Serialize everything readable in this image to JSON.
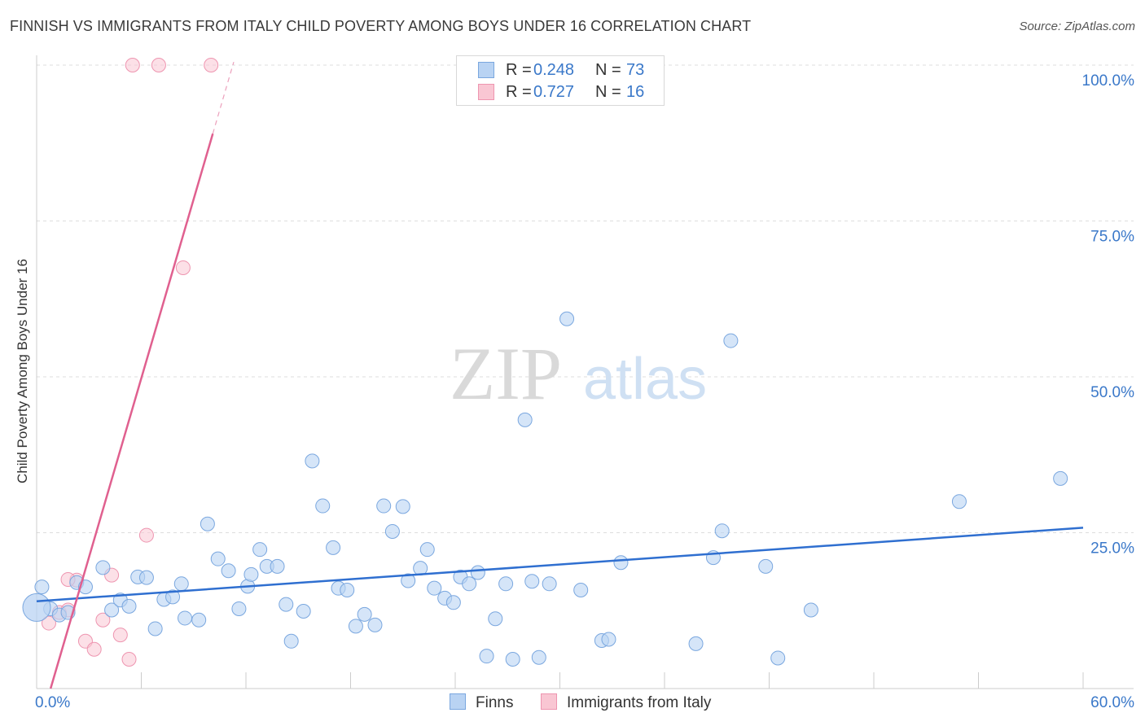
{
  "title": "FINNISH VS IMMIGRANTS FROM ITALY CHILD POVERTY AMONG BOYS UNDER 16 CORRELATION CHART",
  "source": "Source: ZipAtlas.com",
  "watermark": {
    "part1": "ZIP",
    "part2": "atlas"
  },
  "legend": {
    "r_label": "R =",
    "n_label": "N =",
    "rows": [
      {
        "r": "0.248",
        "n": "73"
      },
      {
        "r": "0.727",
        "n": "16"
      }
    ]
  },
  "colors": {
    "finns_fill": "#b9d3f3",
    "finns_stroke": "#7aa7df",
    "finns_line": "#2f6fd0",
    "italy_fill": "#f9c6d3",
    "italy_stroke": "#ee95b0",
    "italy_line": "#e0608f",
    "tick_label": "#3a78c9",
    "grid": "#dddddd"
  },
  "chart_data": {
    "type": "scatter",
    "xlabel": "",
    "ylabel": "Child Poverty Among Boys Under 16",
    "xlim": [
      0,
      60
    ],
    "ylim": [
      0,
      100
    ],
    "x_tick_labels": [
      {
        "value": 0,
        "label": "0.0%"
      },
      {
        "value": 60,
        "label": "60.0%"
      }
    ],
    "y_tick_labels": [
      {
        "value": 100,
        "label": "100.0%"
      },
      {
        "value": 75,
        "label": "75.0%"
      },
      {
        "value": 50,
        "label": "50.0%"
      },
      {
        "value": 25,
        "label": "25.0%"
      }
    ],
    "series": [
      {
        "name": "Finns",
        "r": 0.248,
        "n": 73,
        "trend": {
          "x0": 0,
          "y0": 14.0,
          "x1": 60,
          "y1": 25.8
        },
        "points": [
          [
            0.3,
            16.3
          ],
          [
            0.8,
            12.8
          ],
          [
            1.3,
            11.8
          ],
          [
            1.8,
            12.2
          ],
          [
            2.3,
            17.0
          ],
          [
            2.8,
            16.3
          ],
          [
            3.8,
            19.4
          ],
          [
            4.3,
            12.6
          ],
          [
            4.8,
            14.2
          ],
          [
            5.3,
            13.2
          ],
          [
            5.8,
            17.9
          ],
          [
            6.3,
            17.8
          ],
          [
            6.8,
            9.6
          ],
          [
            7.3,
            14.3
          ],
          [
            7.8,
            14.7
          ],
          [
            8.3,
            16.8
          ],
          [
            8.5,
            11.3
          ],
          [
            9.3,
            11.0
          ],
          [
            9.8,
            26.4
          ],
          [
            10.4,
            20.8
          ],
          [
            11.0,
            18.9
          ],
          [
            11.6,
            12.8
          ],
          [
            12.1,
            16.4
          ],
          [
            12.3,
            18.3
          ],
          [
            12.8,
            22.3
          ],
          [
            13.2,
            19.6
          ],
          [
            13.8,
            19.6
          ],
          [
            14.3,
            13.5
          ],
          [
            14.6,
            7.6
          ],
          [
            15.3,
            12.4
          ],
          [
            15.8,
            36.5
          ],
          [
            16.4,
            29.3
          ],
          [
            17.0,
            22.6
          ],
          [
            17.3,
            16.1
          ],
          [
            17.8,
            15.8
          ],
          [
            18.3,
            10.0
          ],
          [
            18.8,
            11.9
          ],
          [
            19.4,
            10.2
          ],
          [
            19.9,
            29.3
          ],
          [
            20.4,
            25.2
          ],
          [
            21.0,
            29.2
          ],
          [
            21.3,
            17.3
          ],
          [
            22.0,
            19.3
          ],
          [
            22.4,
            22.3
          ],
          [
            22.8,
            16.1
          ],
          [
            23.4,
            14.5
          ],
          [
            23.9,
            13.8
          ],
          [
            24.3,
            17.9
          ],
          [
            24.8,
            16.8
          ],
          [
            25.3,
            18.6
          ],
          [
            25.8,
            5.2
          ],
          [
            26.3,
            11.2
          ],
          [
            26.9,
            16.8
          ],
          [
            27.3,
            4.7
          ],
          [
            28.0,
            43.1
          ],
          [
            28.4,
            17.2
          ],
          [
            28.8,
            5.0
          ],
          [
            29.4,
            16.8
          ],
          [
            30.4,
            59.3
          ],
          [
            31.2,
            15.8
          ],
          [
            32.4,
            7.7
          ],
          [
            32.8,
            7.9
          ],
          [
            33.5,
            20.2
          ],
          [
            37.8,
            7.2
          ],
          [
            38.8,
            21.0
          ],
          [
            39.3,
            25.3
          ],
          [
            39.8,
            55.8
          ],
          [
            41.8,
            19.6
          ],
          [
            42.5,
            4.9
          ],
          [
            44.4,
            12.6
          ],
          [
            52.9,
            30.0
          ],
          [
            58.7,
            33.7
          ],
          [
            0.0,
            13.0
          ]
        ]
      },
      {
        "name": "Immigrants from Italy",
        "r": 0.727,
        "n": 16,
        "trend": {
          "x0": 0.8,
          "y0": 0.0,
          "x1": 10.1,
          "y1": 89.0
        },
        "trend_dashed": {
          "x0": 10.1,
          "y0": 89.0,
          "x1": 11.3,
          "y1": 100.5
        },
        "points": [
          [
            0.7,
            10.5
          ],
          [
            1.3,
            12.2
          ],
          [
            1.8,
            12.6
          ],
          [
            2.3,
            17.4
          ],
          [
            2.8,
            7.6
          ],
          [
            3.3,
            6.3
          ],
          [
            3.8,
            11.0
          ],
          [
            4.3,
            18.2
          ],
          [
            4.8,
            8.6
          ],
          [
            5.3,
            4.7
          ],
          [
            6.3,
            24.6
          ],
          [
            8.4,
            67.5
          ],
          [
            5.5,
            100.0
          ],
          [
            7.0,
            100.0
          ],
          [
            10.0,
            100.0
          ],
          [
            1.8,
            17.5
          ]
        ]
      }
    ]
  },
  "bottom_legend": [
    "Finns",
    "Immigrants from Italy"
  ]
}
